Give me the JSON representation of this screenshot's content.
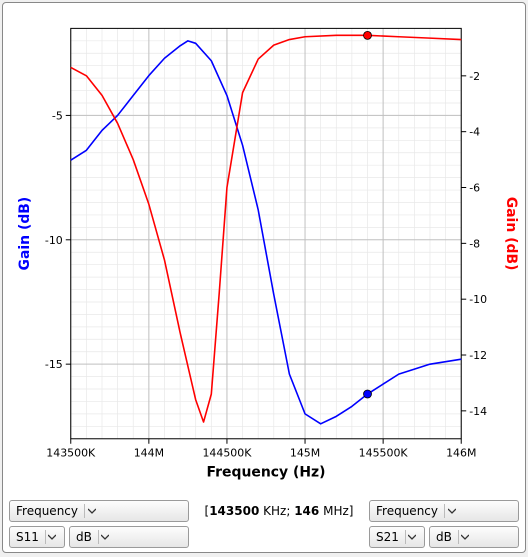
{
  "chart": {
    "type": "line-dual-axis",
    "background_color": "#ffffff",
    "plot_border_color": "#000000",
    "grid_major_color": "#c0c0c0",
    "grid_minor_color": "#e8e8e8",
    "x_axis": {
      "label": "Frequency (Hz)",
      "label_fontsize": 14,
      "label_color": "#000000",
      "min": 143500000,
      "max": 146000000,
      "ticks": [
        {
          "v": 143500000,
          "label": "143500K"
        },
        {
          "v": 144000000,
          "label": "144M"
        },
        {
          "v": 144500000,
          "label": "144500K"
        },
        {
          "v": 145000000,
          "label": "145M"
        },
        {
          "v": 145500000,
          "label": "145500K"
        },
        {
          "v": 146000000,
          "label": "146M"
        }
      ],
      "tick_fontsize": 11
    },
    "y_left": {
      "label": "Gain (dB)",
      "label_fontsize": 14,
      "label_color": "#0000ff",
      "min": -18,
      "max": -1.5,
      "ticks": [
        {
          "v": -5,
          "label": "-5"
        },
        {
          "v": -10,
          "label": "-10"
        },
        {
          "v": -15,
          "label": "-15"
        }
      ],
      "tick_fontsize": 11
    },
    "y_right": {
      "label": "Gain (dB)",
      "label_fontsize": 14,
      "label_color": "#ff0000",
      "min": -15,
      "max": -0.3,
      "ticks": [
        {
          "v": -2,
          "label": "-2"
        },
        {
          "v": -4,
          "label": "-4"
        },
        {
          "v": -6,
          "label": "-6"
        },
        {
          "v": -8,
          "label": "-8"
        },
        {
          "v": -10,
          "label": "-10"
        },
        {
          "v": -12,
          "label": "-12"
        },
        {
          "v": -14,
          "label": "-14"
        }
      ],
      "tick_fontsize": 11
    },
    "series": [
      {
        "name": "S11",
        "axis": "left",
        "color": "#0000ff",
        "line_width": 1.6,
        "marker": {
          "x": 145400000,
          "y": -16.2,
          "color": "#0000ff",
          "radius": 4
        },
        "points": [
          [
            143500000,
            -6.8
          ],
          [
            143600000,
            -6.4
          ],
          [
            143700000,
            -5.6
          ],
          [
            143800000,
            -5.0
          ],
          [
            143900000,
            -4.2
          ],
          [
            144000000,
            -3.4
          ],
          [
            144100000,
            -2.7
          ],
          [
            144200000,
            -2.2
          ],
          [
            144250000,
            -2.0
          ],
          [
            144300000,
            -2.1
          ],
          [
            144400000,
            -2.8
          ],
          [
            144500000,
            -4.2
          ],
          [
            144600000,
            -6.2
          ],
          [
            144700000,
            -8.8
          ],
          [
            144800000,
            -12.2
          ],
          [
            144900000,
            -15.4
          ],
          [
            145000000,
            -17.0
          ],
          [
            145100000,
            -17.4
          ],
          [
            145200000,
            -17.1
          ],
          [
            145300000,
            -16.7
          ],
          [
            145400000,
            -16.2
          ],
          [
            145500000,
            -15.8
          ],
          [
            145600000,
            -15.4
          ],
          [
            145700000,
            -15.2
          ],
          [
            145800000,
            -15.0
          ],
          [
            145900000,
            -14.9
          ],
          [
            146000000,
            -14.8
          ]
        ]
      },
      {
        "name": "S21",
        "axis": "right",
        "color": "#ff0000",
        "line_width": 1.6,
        "marker": {
          "x": 145400000,
          "y": -0.55,
          "color": "#ff0000",
          "radius": 4
        },
        "points": [
          [
            143500000,
            -1.7
          ],
          [
            143600000,
            -2.0
          ],
          [
            143700000,
            -2.7
          ],
          [
            143800000,
            -3.7
          ],
          [
            143900000,
            -5.0
          ],
          [
            144000000,
            -6.6
          ],
          [
            144100000,
            -8.6
          ],
          [
            144200000,
            -11.2
          ],
          [
            144300000,
            -13.6
          ],
          [
            144350000,
            -14.4
          ],
          [
            144400000,
            -13.4
          ],
          [
            144450000,
            -9.8
          ],
          [
            144500000,
            -6.0
          ],
          [
            144600000,
            -2.6
          ],
          [
            144700000,
            -1.4
          ],
          [
            144800000,
            -0.9
          ],
          [
            144900000,
            -0.7
          ],
          [
            145000000,
            -0.6
          ],
          [
            145200000,
            -0.55
          ],
          [
            145400000,
            -0.55
          ],
          [
            145600000,
            -0.6
          ],
          [
            145800000,
            -0.65
          ],
          [
            146000000,
            -0.7
          ]
        ]
      }
    ]
  },
  "controls": {
    "left": {
      "param_combo": "Frequency",
      "trace_combo": "S11",
      "unit_combo": "dB"
    },
    "right": {
      "param_combo": "Frequency",
      "trace_combo": "S21",
      "unit_combo": "dB"
    },
    "center": {
      "lo_value": "143500",
      "lo_unit": "KHz",
      "hi_value": "146",
      "hi_unit": "MHz",
      "open_bracket": "[",
      "sep": "; ",
      "close_bracket": "]"
    }
  }
}
